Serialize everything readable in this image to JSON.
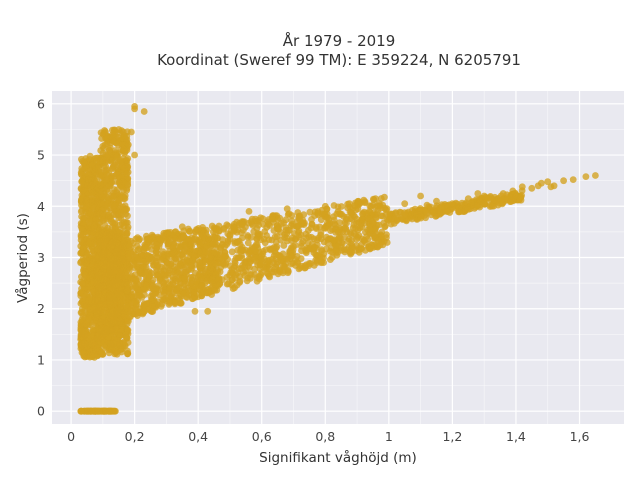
{
  "chart_data": {
    "type": "scatter",
    "title": "År 1979 - 2019",
    "subtitle": "Koordinat (Sweref 99 TM): E 359224, N 6205791",
    "xlabel": "Signifikant våghöjd (m)",
    "ylabel": "Vågperiod (s)",
    "xlim": [
      -0.06,
      1.74
    ],
    "ylim": [
      -0.25,
      6.25
    ],
    "x_ticks": [
      0,
      0.2,
      0.4,
      0.6,
      0.8,
      1,
      1.2,
      1.4,
      1.6
    ],
    "x_tick_labels": [
      "0",
      "0,2",
      "0,4",
      "0,6",
      "0,8",
      "1",
      "1,2",
      "1,4",
      "1,6"
    ],
    "y_ticks": [
      0,
      1,
      2,
      3,
      4,
      5,
      6
    ],
    "y_tick_labels": [
      "0",
      "1",
      "2",
      "3",
      "4",
      "5",
      "6"
    ],
    "grid": true,
    "background": "#e9e9f0",
    "point_color": "#d4a21f",
    "regions": [
      {
        "x": [
          0.03,
          0.14
        ],
        "y": [
          0.0,
          0.0
        ],
        "n": 90
      },
      {
        "x": [
          0.03,
          0.09
        ],
        "y": [
          1.05,
          4.95
        ],
        "n": 650
      },
      {
        "x": [
          0.09,
          0.18
        ],
        "y": [
          1.1,
          5.5
        ],
        "n": 700
      },
      {
        "x": [
          0.08,
          0.16
        ],
        "y": [
          1.2,
          3.5
        ],
        "n": 500
      },
      {
        "x": [
          0.03,
          0.05
        ],
        "y": [
          1.2,
          1.75
        ],
        "n": 40
      },
      {
        "x": [
          0.12,
          0.46
        ],
        "y": [
          1.7,
          3.7
        ],
        "n": 900
      },
      {
        "x": [
          0.45,
          1.0
        ],
        "y": [
          2.6,
          4.0
        ],
        "n": 700
      },
      {
        "x": [
          1.0,
          1.42
        ],
        "y": [
          3.6,
          4.35
        ],
        "n": 240
      }
    ],
    "points": [
      [
        0.2,
        5.9
      ],
      [
        0.2,
        5.95
      ],
      [
        0.23,
        5.85
      ],
      [
        0.12,
        5.1
      ],
      [
        0.15,
        5.35
      ],
      [
        0.18,
        5.2
      ],
      [
        0.19,
        5.45
      ],
      [
        0.04,
        4.85
      ],
      [
        0.06,
        4.98
      ],
      [
        0.09,
        4.88
      ],
      [
        0.2,
        5.0
      ],
      [
        0.27,
        3.3
      ],
      [
        0.39,
        1.95
      ],
      [
        0.43,
        1.95
      ],
      [
        0.35,
        3.6
      ],
      [
        0.56,
        3.9
      ],
      [
        0.58,
        3.75
      ],
      [
        0.68,
        3.95
      ],
      [
        0.8,
        4.0
      ],
      [
        0.94,
        3.75
      ],
      [
        1.05,
        4.05
      ],
      [
        1.1,
        4.2
      ],
      [
        1.15,
        4.1
      ],
      [
        1.2,
        4.05
      ],
      [
        1.25,
        4.15
      ],
      [
        1.3,
        4.2
      ],
      [
        1.36,
        4.25
      ],
      [
        1.39,
        4.3
      ],
      [
        1.42,
        4.38
      ],
      [
        1.45,
        4.35
      ],
      [
        1.48,
        4.45
      ],
      [
        1.5,
        4.48
      ],
      [
        1.52,
        4.4
      ],
      [
        1.55,
        4.5
      ],
      [
        1.58,
        4.52
      ],
      [
        1.62,
        4.58
      ],
      [
        1.65,
        4.6
      ],
      [
        1.47,
        4.4
      ],
      [
        1.51,
        4.38
      ],
      [
        1.28,
        4.25
      ],
      [
        1.12,
        4.02
      ]
    ]
  }
}
